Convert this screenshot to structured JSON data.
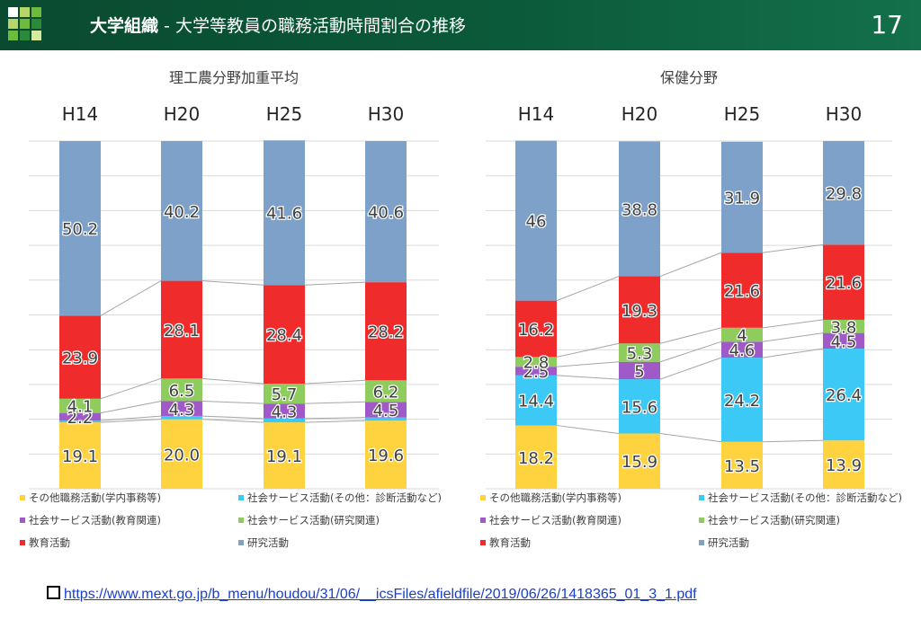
{
  "header": {
    "title_bold": "大学組織",
    "title_rest": " - 大学等教員の職務活動時間割合の推移",
    "page_number": "17",
    "logo_colors": [
      "#ffffff",
      "#b6d66a",
      "#6cbb3c",
      "#2a8a3a",
      "#d7ea9c"
    ]
  },
  "colors": {
    "その他職務活動(学内事務等)": "#ffd23f",
    "社会サービス活動(その他：診断活動など)": "#3cc9f5",
    "社会サービス活動(教育関連)": "#a05ac8",
    "社会サービス活動(研究関連)": "#8fcc5e",
    "教育活動": "#ef2b2b",
    "研究活動": "#7ea1c9"
  },
  "chart_data": [
    {
      "type": "bar",
      "stacked": true,
      "title": "理工農分野加重平均",
      "categories": [
        "H14",
        "H20",
        "H25",
        "H30"
      ],
      "ylim": [
        0,
        100
      ],
      "grid": true,
      "legend_position": "bottom",
      "series": [
        {
          "name": "その他職務活動(学内事務等)",
          "values": [
            19.1,
            20.0,
            19.1,
            19.6
          ],
          "labels": [
            "19.1",
            "20.0",
            "19.1",
            "19.6"
          ]
        },
        {
          "name": "社会サービス活動(その他：診断活動など)",
          "values": [
            0.5,
            0.9,
            1.1,
            0.9
          ],
          "labels": [
            "",
            "",
            "",
            ""
          ]
        },
        {
          "name": "社会サービス活動(教育関連)",
          "values": [
            2.2,
            4.3,
            4.3,
            4.5
          ],
          "labels": [
            "2.2",
            "4.3",
            "4.3",
            "4.5"
          ]
        },
        {
          "name": "社会サービス活動(研究関連)",
          "values": [
            4.1,
            6.5,
            5.7,
            6.2
          ],
          "labels": [
            "4.1",
            "6.5",
            "5.7",
            "6.2"
          ]
        },
        {
          "name": "教育活動",
          "values": [
            23.9,
            28.1,
            28.4,
            28.2
          ],
          "labels": [
            "23.9",
            "28.1",
            "28.4",
            "28.2"
          ]
        },
        {
          "name": "研究活動",
          "values": [
            50.2,
            40.2,
            41.6,
            40.6
          ],
          "labels": [
            "50.2",
            "40.2",
            "41.6",
            "40.6"
          ]
        }
      ]
    },
    {
      "type": "bar",
      "stacked": true,
      "title": "保健分野",
      "categories": [
        "H14",
        "H20",
        "H25",
        "H30"
      ],
      "ylim": [
        0,
        100
      ],
      "grid": true,
      "legend_position": "bottom",
      "series": [
        {
          "name": "その他職務活動(学内事務等)",
          "values": [
            18.2,
            15.9,
            13.5,
            13.9
          ],
          "labels": [
            "18.2",
            "15.9",
            "13.5",
            "13.9"
          ]
        },
        {
          "name": "社会サービス活動(その他：診断活動など)",
          "values": [
            14.4,
            15.6,
            24.2,
            26.4
          ],
          "labels": [
            "14.4",
            "15.6",
            "24.2",
            "26.4"
          ]
        },
        {
          "name": "社会サービス活動(教育関連)",
          "values": [
            2.5,
            5.0,
            4.6,
            4.5
          ],
          "labels": [
            "2.5",
            "5",
            "4.6",
            "4.5"
          ]
        },
        {
          "name": "社会サービス活動(研究関連)",
          "values": [
            2.8,
            5.3,
            4.0,
            3.8
          ],
          "labels": [
            "2.8",
            "5.3",
            "4",
            "3.8"
          ]
        },
        {
          "name": "教育活動",
          "values": [
            16.2,
            19.3,
            21.6,
            21.6
          ],
          "labels": [
            "16.2",
            "19.3",
            "21.6",
            "21.6"
          ]
        },
        {
          "name": "研究活動",
          "values": [
            46,
            38.8,
            31.9,
            29.8
          ],
          "labels": [
            "46",
            "38.8",
            "31.9",
            "29.8"
          ]
        }
      ]
    }
  ],
  "source": {
    "url": "https://www.mext.go.jp/b_menu/houdou/31/06/__icsFiles/afieldfile/2019/06/26/1418365_01_3_1.pdf"
  }
}
